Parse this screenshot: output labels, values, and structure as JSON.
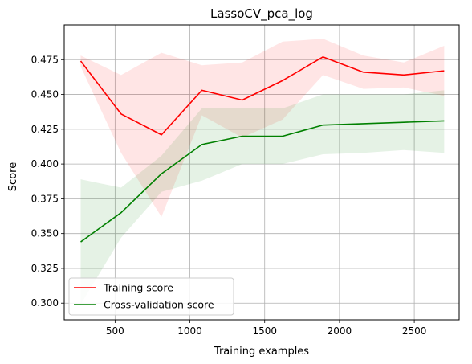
{
  "chart_data": {
    "type": "line",
    "title": "LassoCV_pca_log",
    "xlabel": "Training examples",
    "ylabel": "Score",
    "xlim": [
      160,
      2800
    ],
    "ylim": [
      0.288,
      0.5
    ],
    "xticks": [
      500,
      1000,
      1500,
      2000,
      2500
    ],
    "yticks": [
      0.3,
      0.325,
      0.35,
      0.375,
      0.4,
      0.425,
      0.45,
      0.475
    ],
    "xtick_labels": [
      "500",
      "1000",
      "1500",
      "2000",
      "2500"
    ],
    "ytick_labels": [
      "0.300",
      "0.325",
      "0.350",
      "0.375",
      "0.400",
      "0.425",
      "0.450",
      "0.475"
    ],
    "grid": true,
    "legend_position": "lower-left",
    "x": [
      270,
      540,
      810,
      1080,
      1350,
      1620,
      1890,
      2160,
      2430,
      2700
    ],
    "series": [
      {
        "name": "Training score",
        "color": "#ff0000",
        "band_color": "#ff0000",
        "values": [
          0.474,
          0.436,
          0.421,
          0.453,
          0.446,
          0.46,
          0.477,
          0.466,
          0.464,
          0.467
        ],
        "upper": [
          0.478,
          0.464,
          0.48,
          0.471,
          0.473,
          0.488,
          0.49,
          0.478,
          0.473,
          0.485
        ],
        "lower": [
          0.47,
          0.408,
          0.362,
          0.435,
          0.419,
          0.432,
          0.464,
          0.454,
          0.455,
          0.449
        ]
      },
      {
        "name": "Cross-validation score",
        "color": "#008000",
        "band_color": "#008000",
        "values": [
          0.344,
          0.365,
          0.393,
          0.414,
          0.42,
          0.42,
          0.428,
          0.429,
          0.43,
          0.431
        ],
        "upper": [
          0.389,
          0.383,
          0.406,
          0.44,
          0.44,
          0.44,
          0.45,
          0.45,
          0.45,
          0.453
        ],
        "lower": [
          0.299,
          0.347,
          0.38,
          0.388,
          0.4,
          0.4,
          0.407,
          0.408,
          0.41,
          0.408
        ]
      }
    ]
  }
}
